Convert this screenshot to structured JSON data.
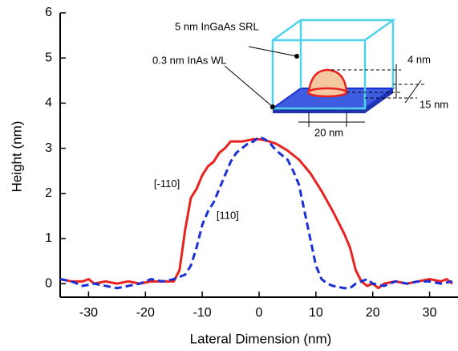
{
  "chart_data": {
    "type": "line",
    "xlabel": "Lateral Dimension (nm)",
    "ylabel": "Height (nm)",
    "xlim": [
      -35,
      35
    ],
    "ylim": [
      -0.3,
      6
    ],
    "xticks": [
      -30,
      -20,
      -10,
      0,
      10,
      20,
      30
    ],
    "yticks": [
      0,
      1,
      2,
      3,
      4,
      5,
      6
    ],
    "series": [
      {
        "name": "[-110]",
        "color": "#e8231f",
        "dash": false,
        "x": [
          -35,
          -33,
          -31,
          -30,
          -29,
          -27,
          -25,
          -23,
          -21,
          -19,
          -17,
          -15,
          -14,
          -13,
          -12,
          -11,
          -10,
          -9,
          -8,
          -7,
          -6,
          -5,
          -3,
          -1,
          0,
          1,
          3,
          5,
          7,
          9,
          11,
          13,
          15,
          16,
          17,
          18,
          19,
          20,
          21,
          22,
          24,
          26,
          28,
          30,
          32,
          33,
          34
        ],
        "values": [
          0.1,
          0.05,
          0.05,
          0.1,
          0.0,
          0.05,
          0.0,
          0.05,
          0.0,
          0.05,
          0.05,
          0.05,
          0.3,
          1.2,
          1.9,
          2.1,
          2.4,
          2.6,
          2.7,
          2.9,
          3.0,
          3.15,
          3.15,
          3.2,
          3.2,
          3.18,
          3.1,
          2.95,
          2.75,
          2.45,
          2.05,
          1.6,
          1.1,
          0.8,
          0.3,
          0.05,
          -0.05,
          0.0,
          -0.1,
          0.0,
          0.05,
          0.0,
          0.05,
          0.1,
          0.05,
          0.1,
          0.0
        ]
      },
      {
        "name": "[110]",
        "color": "#1a2fd6",
        "dash": true,
        "x": [
          -35,
          -33,
          -31,
          -29,
          -27,
          -25,
          -23,
          -21,
          -19,
          -17,
          -15,
          -13,
          -12,
          -11,
          -10,
          -9,
          -8,
          -7,
          -6,
          -5,
          -4,
          -3,
          -2,
          -1,
          0,
          1,
          2,
          3,
          5,
          6,
          7,
          8,
          9,
          10,
          11,
          12,
          13,
          15,
          16,
          17,
          19,
          20,
          22,
          24,
          26,
          28,
          30,
          32,
          34
        ],
        "values": [
          0.1,
          0.05,
          -0.05,
          0.0,
          -0.05,
          -0.1,
          -0.05,
          0.0,
          0.1,
          0.05,
          0.1,
          0.2,
          0.4,
          0.8,
          1.3,
          1.6,
          1.8,
          2.1,
          2.4,
          2.7,
          2.9,
          3.0,
          3.1,
          3.15,
          3.25,
          3.2,
          3.1,
          2.95,
          2.75,
          2.5,
          2.2,
          1.6,
          1.0,
          0.4,
          0.1,
          0.0,
          -0.05,
          -0.1,
          -0.1,
          0.0,
          0.1,
          0.0,
          -0.05,
          0.05,
          0.0,
          0.05,
          0.05,
          0.0,
          0.05
        ]
      }
    ],
    "inset_labels": [
      "5 nm InGaAs SRL",
      "0.3 nm InAs WL",
      "4 nm",
      "15 nm",
      "20 nm"
    ]
  }
}
